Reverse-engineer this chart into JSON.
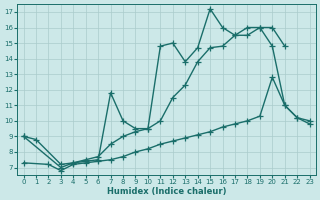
{
  "xlabel": "Humidex (Indice chaleur)",
  "bg_color": "#cce8e8",
  "grid_color": "#aacccc",
  "line_color": "#1a6e6a",
  "xlim": [
    -0.5,
    23.5
  ],
  "ylim": [
    6.5,
    17.5
  ],
  "xticks": [
    0,
    1,
    2,
    3,
    4,
    5,
    6,
    7,
    8,
    9,
    10,
    11,
    12,
    13,
    14,
    15,
    16,
    17,
    18,
    19,
    20,
    21,
    22,
    23
  ],
  "yticks": [
    7,
    8,
    9,
    10,
    11,
    12,
    13,
    14,
    15,
    16,
    17
  ],
  "line1_x": [
    0,
    1,
    3,
    4,
    5,
    6,
    7,
    8,
    9,
    10,
    11,
    12,
    13,
    14,
    15,
    16,
    17,
    18,
    19,
    20,
    21,
    22,
    23
  ],
  "line1_y": [
    9.0,
    8.8,
    7.2,
    7.3,
    7.4,
    7.5,
    11.8,
    10.0,
    9.5,
    9.5,
    14.8,
    15.0,
    13.8,
    14.7,
    17.2,
    16.0,
    15.5,
    16.0,
    16.0,
    14.8,
    11.0,
    10.2,
    9.8
  ],
  "line2_x": [
    0,
    3,
    4,
    5,
    6,
    7,
    8,
    9,
    10,
    11,
    12,
    13,
    14,
    15,
    16,
    17,
    18,
    19,
    20,
    21,
    22,
    23
  ],
  "line2_y": [
    9.0,
    7.0,
    7.3,
    7.5,
    7.7,
    8.5,
    9.0,
    9.3,
    9.5,
    10.0,
    11.5,
    12.3,
    13.8,
    14.7,
    14.8,
    15.5,
    15.5,
    16.0,
    16.0,
    14.8,
    null,
    null
  ],
  "line3_x": [
    0,
    2,
    3,
    4,
    5,
    6,
    7,
    8,
    9,
    10,
    11,
    12,
    13,
    14,
    15,
    16,
    17,
    18,
    19,
    20,
    21,
    22,
    23
  ],
  "line3_y": [
    7.3,
    7.2,
    6.8,
    7.2,
    7.3,
    7.4,
    7.5,
    7.7,
    8.0,
    8.2,
    8.5,
    8.7,
    8.9,
    9.1,
    9.3,
    9.6,
    9.8,
    10.0,
    10.3,
    12.8,
    11.0,
    10.2,
    10.0
  ],
  "marker": "+",
  "marker_size": 4,
  "line_width": 1.0
}
